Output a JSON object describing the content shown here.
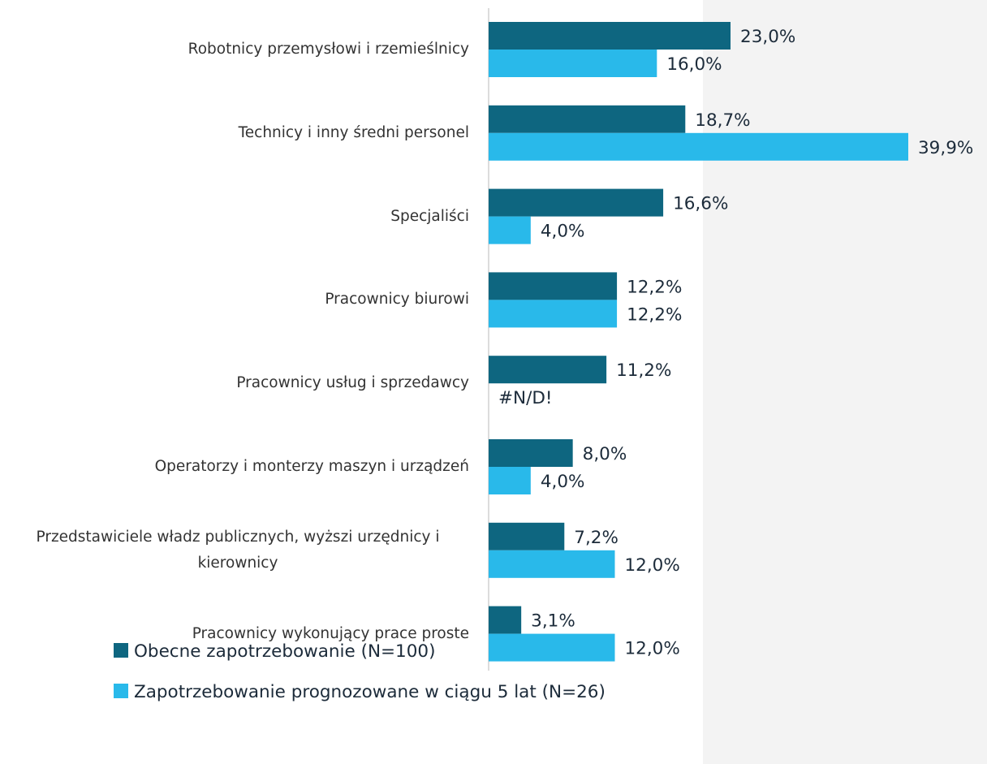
{
  "chart_data": {
    "type": "bar",
    "orientation": "horizontal",
    "categories": [
      "Robotnicy przemysłowi i rzemieślnicy",
      "Technicy i inny średni personel",
      "Specjaliści",
      "Pracownicy biurowi",
      "Pracownicy usług i sprzedawcy",
      "Operatorzy i monterzy maszyn i urządzeń",
      "Przedstawiciele władz publicznych, wyższi urzędnicy i kierownicy",
      "Pracownicy wykonujący prace proste"
    ],
    "series": [
      {
        "name": "Obecne zapotrzebowanie (N=100)",
        "color": "#0e6680",
        "values": [
          23.0,
          18.7,
          16.6,
          12.2,
          11.2,
          8.0,
          7.2,
          3.1
        ],
        "value_labels": [
          "23,0%",
          "18,7%",
          "16,6%",
          "12,2%",
          "11,2%",
          "8,0%",
          "7,2%",
          "3,1%"
        ]
      },
      {
        "name": "Zapotrzebowanie prognozowane w ciągu 5 lat (N=26)",
        "color": "#29b9ea",
        "values": [
          16.0,
          39.9,
          4.0,
          12.2,
          null,
          4.0,
          12.0,
          12.0
        ],
        "value_labels": [
          "16,0%",
          "39,9%",
          "4,0%",
          "12,2%",
          "#N/D!",
          "4,0%",
          "12,0%",
          "12,0%"
        ]
      }
    ],
    "legend": "bottom-left"
  }
}
